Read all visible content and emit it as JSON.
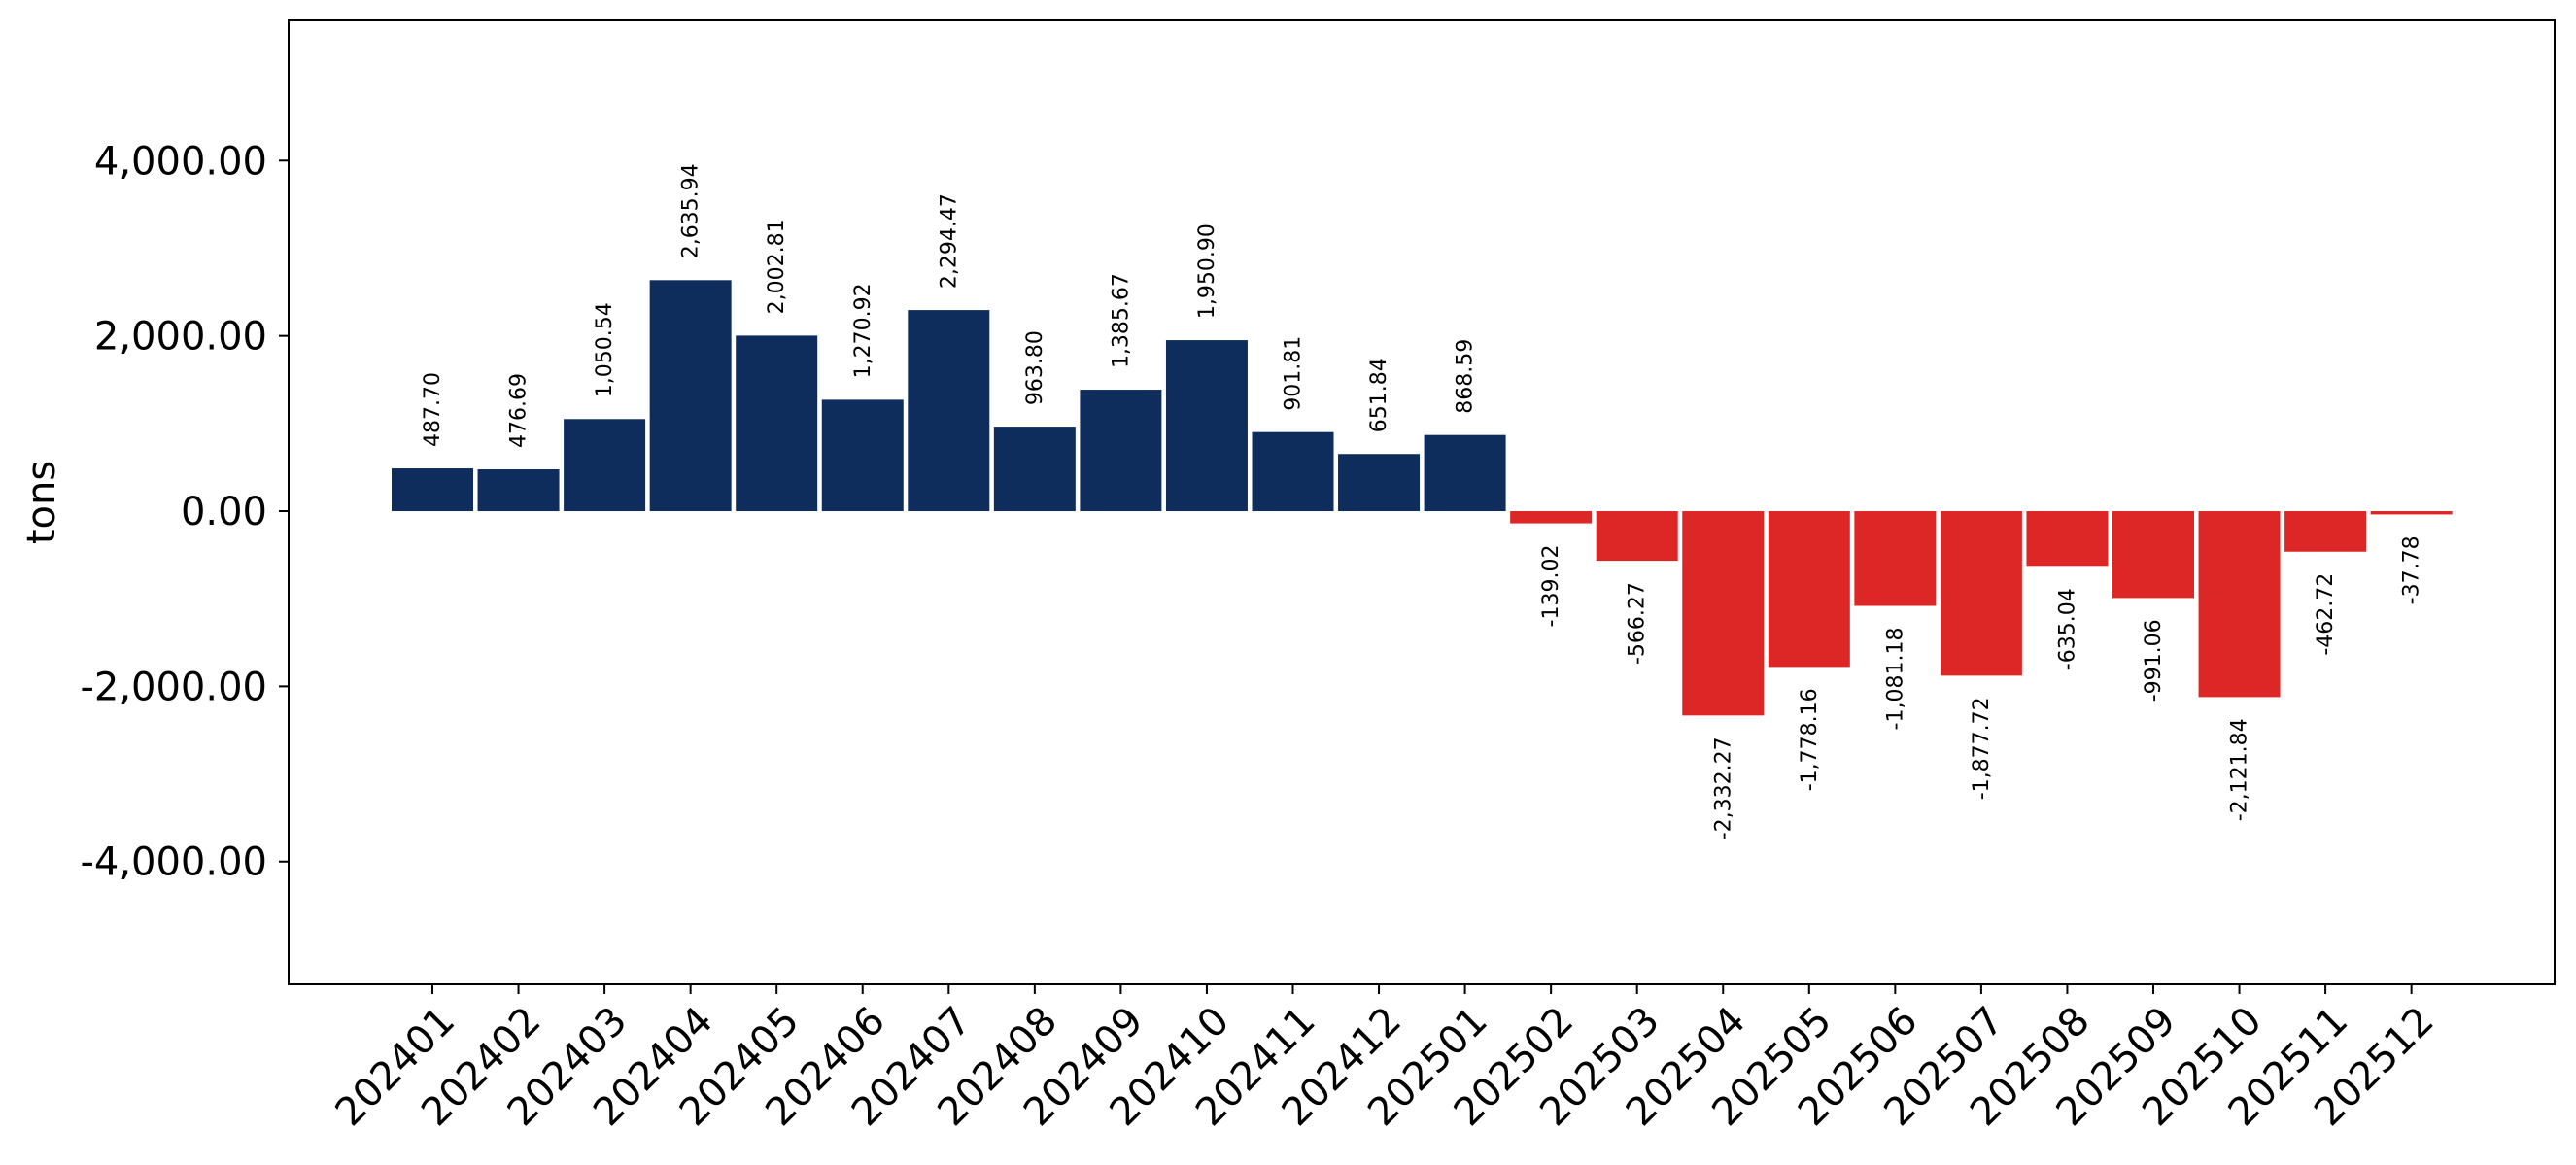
{
  "colors": {
    "positive": "#0e2d5c",
    "negative": "#dd2727",
    "axis": "#000000",
    "background": "#ffffff"
  },
  "chart_data": {
    "type": "bar",
    "title": "",
    "xlabel": "",
    "ylabel": "tons",
    "ylim": [
      -5400,
      5600
    ],
    "yticks": [
      -4000,
      -2000,
      0,
      2000,
      4000
    ],
    "ytick_labels": [
      "-4,000.00",
      "-2,000.00",
      "0.00",
      "2,000.00",
      "4,000.00"
    ],
    "grid": false,
    "legend": "none",
    "categories": [
      "202401",
      "202402",
      "202403",
      "202404",
      "202405",
      "202406",
      "202407",
      "202408",
      "202409",
      "202410",
      "202411",
      "202412",
      "202501",
      "202502",
      "202503",
      "202504",
      "202505",
      "202506",
      "202507",
      "202508",
      "202509",
      "202510",
      "202511",
      "202512"
    ],
    "values": [
      487.7,
      476.69,
      1050.54,
      2635.94,
      2002.81,
      1270.92,
      2294.47,
      963.8,
      1385.67,
      1950.9,
      901.81,
      651.84,
      868.59,
      -139.02,
      -566.27,
      -2332.27,
      -1778.16,
      -1081.18,
      -1877.72,
      -635.04,
      -991.06,
      -2121.84,
      -462.72,
      -37.78
    ],
    "value_labels": [
      "487.70",
      "476.69",
      "1,050.54",
      "2,635.94",
      "2,002.81",
      "1,270.92",
      "2,294.47",
      "963.80",
      "1,385.67",
      "1,950.90",
      "901.81",
      "651.84",
      "868.59",
      "-139.02",
      "-566.27",
      "-2,332.27",
      "-1,778.16",
      "-1,081.18",
      "-1,877.72",
      "-635.04",
      "-991.06",
      "-2,121.84",
      "-462.72",
      "-37.78"
    ]
  }
}
